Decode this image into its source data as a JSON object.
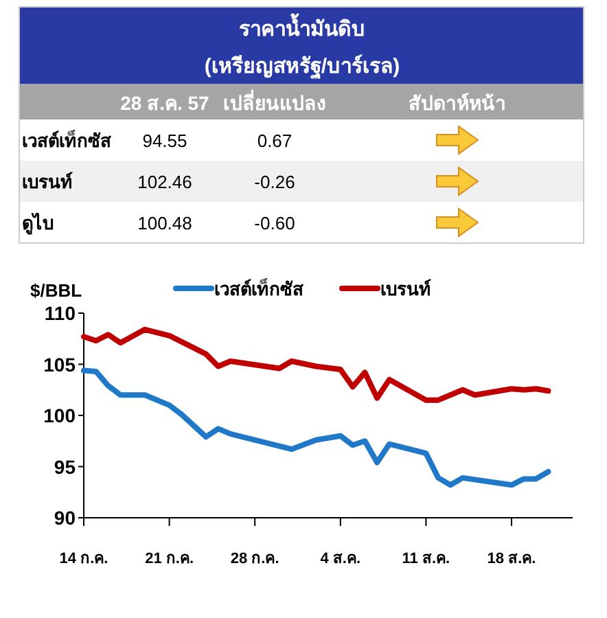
{
  "chart_data": [
    {
      "type": "other",
      "title": "ราคาน้ำมันดิบ",
      "subtitle": "(เหรียญสหรัฐ/บาร์เรล)",
      "annotations": [
        "28 ส.ค. 57",
        "เปลี่ยนแปลง",
        "สัปดาห์หน้า",
        "เวสต์เท็กซัส",
        "94.55",
        "0.67",
        "เบรนท์",
        "102.46",
        "-0.26",
        "ดูไบ",
        "100.48",
        "-0.60"
      ]
    },
    {
      "type": "line",
      "ylabel": "$/BBL",
      "legend": "top",
      "xlim": [
        "--07-14",
        "--08-23"
      ],
      "xticks": [
        {
          "value": "--07-14",
          "label": "14 ก.ค."
        },
        {
          "value": "--07-21",
          "label": "21 ก.ค."
        },
        {
          "value": "--07-28",
          "label": "28 ก.ค."
        },
        {
          "value": "--08-04",
          "label": "4 ส.ค."
        },
        {
          "value": "--08-11",
          "label": "11 ส.ค."
        },
        {
          "value": "--08-18",
          "label": "18 ส.ค."
        }
      ],
      "ylim": [
        90,
        110
      ],
      "yticks": [
        90,
        95,
        100,
        105,
        110
      ],
      "series": [
        {
          "name": "เวสต์เท็กซัส",
          "color": "#1f78c8",
          "x": [
            "--07-14",
            "--07-15",
            "--07-16",
            "--07-17",
            "--07-19",
            "--07-21",
            "--07-22",
            "--07-24",
            "--07-25",
            "--07-26",
            "--07-31",
            "--08-02",
            "--08-04",
            "--08-05",
            "--08-06",
            "--08-07",
            "--08-08",
            "--08-11",
            "--08-12",
            "--08-13",
            "--08-14",
            "--08-18",
            "--08-19",
            "--08-20",
            "--08-21"
          ],
          "values": [
            104.4,
            104.3,
            102.9,
            102.0,
            102.0,
            101.0,
            100.1,
            97.9,
            98.7,
            98.2,
            96.7,
            97.6,
            98.0,
            97.1,
            97.5,
            95.4,
            97.2,
            96.3,
            93.9,
            93.2,
            93.9,
            93.2,
            93.8,
            93.8,
            94.5
          ]
        },
        {
          "name": "เบรนท์",
          "color": "#c00000",
          "x": [
            "--07-14",
            "--07-15",
            "--07-16",
            "--07-17",
            "--07-19",
            "--07-21",
            "--07-23",
            "--07-24",
            "--07-25",
            "--07-26",
            "--07-30",
            "--07-31",
            "--08-02",
            "--08-04",
            "--08-05",
            "--08-06",
            "--08-07",
            "--08-08",
            "--08-11",
            "--08-12",
            "--08-14",
            "--08-15",
            "--08-18",
            "--08-19",
            "--08-20",
            "--08-21"
          ],
          "values": [
            107.7,
            107.3,
            107.9,
            107.1,
            108.4,
            107.8,
            106.6,
            106.0,
            104.8,
            105.3,
            104.6,
            105.3,
            104.8,
            104.5,
            102.8,
            104.2,
            101.7,
            103.5,
            101.5,
            101.5,
            102.5,
            102.0,
            102.6,
            102.5,
            102.6,
            102.4
          ]
        }
      ]
    }
  ]
}
